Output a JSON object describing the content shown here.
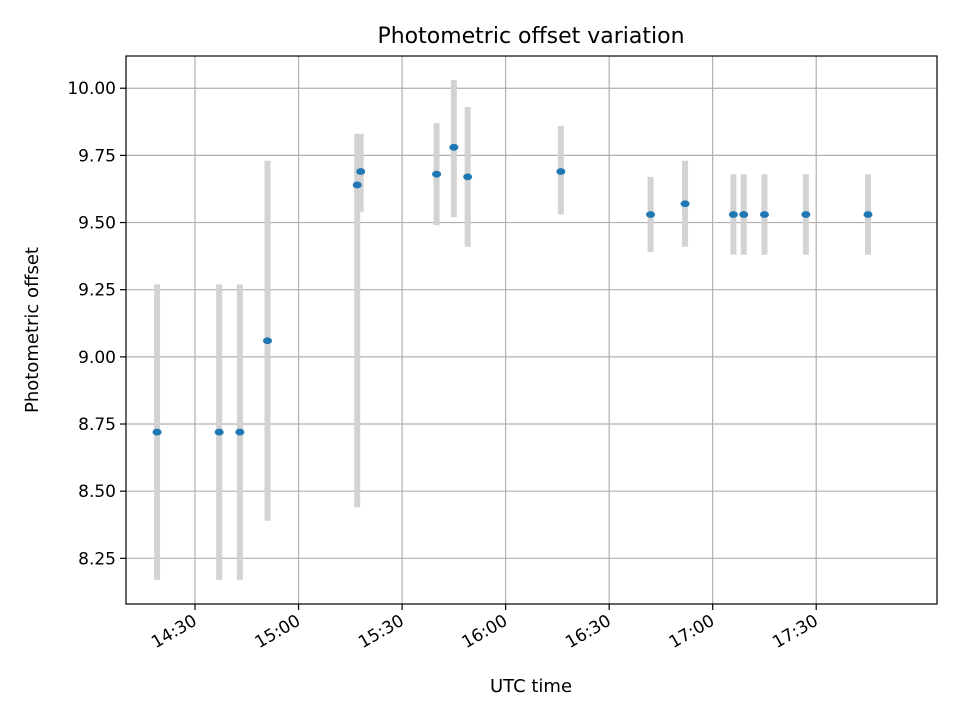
{
  "chart_data": {
    "type": "scatter",
    "title": "Photometric offset variation",
    "xlabel": "UTC time",
    "ylabel": "Photometric offset",
    "grid": true,
    "legend": "none",
    "x_range": [
      "14:10",
      "18:05"
    ],
    "ylim": [
      8.08,
      10.12
    ],
    "x_ticks": [
      "14:30",
      "15:00",
      "15:30",
      "16:00",
      "16:30",
      "17:00",
      "17:30"
    ],
    "y_ticks": [
      "8.25",
      "8.50",
      "8.75",
      "9.00",
      "9.25",
      "9.50",
      "9.75",
      "10.00"
    ],
    "colors": {
      "point": "#1f77b4",
      "errorbar": "#d3d3d3",
      "grid": "#b0b0b0"
    },
    "points": [
      {
        "x": "14:19",
        "y": 8.72,
        "ylow": 8.17,
        "yhigh": 9.27
      },
      {
        "x": "14:37",
        "y": 8.72,
        "ylow": 8.17,
        "yhigh": 9.27
      },
      {
        "x": "14:43",
        "y": 8.72,
        "ylow": 8.17,
        "yhigh": 9.27
      },
      {
        "x": "14:51",
        "y": 9.06,
        "ylow": 8.39,
        "yhigh": 9.73
      },
      {
        "x": "15:17",
        "y": 9.64,
        "ylow": 8.44,
        "yhigh": 9.83
      },
      {
        "x": "15:18",
        "y": 9.69,
        "ylow": 9.54,
        "yhigh": 9.83
      },
      {
        "x": "15:40",
        "y": 9.68,
        "ylow": 9.49,
        "yhigh": 9.87
      },
      {
        "x": "15:45",
        "y": 9.78,
        "ylow": 9.52,
        "yhigh": 10.03
      },
      {
        "x": "15:49",
        "y": 9.67,
        "ylow": 9.41,
        "yhigh": 9.93
      },
      {
        "x": "16:16",
        "y": 9.69,
        "ylow": 9.53,
        "yhigh": 9.86
      },
      {
        "x": "16:42",
        "y": 9.53,
        "ylow": 9.39,
        "yhigh": 9.67
      },
      {
        "x": "16:52",
        "y": 9.57,
        "ylow": 9.41,
        "yhigh": 9.73
      },
      {
        "x": "17:06",
        "y": 9.53,
        "ylow": 9.38,
        "yhigh": 9.68
      },
      {
        "x": "17:09",
        "y": 9.53,
        "ylow": 9.38,
        "yhigh": 9.68
      },
      {
        "x": "17:15",
        "y": 9.53,
        "ylow": 9.38,
        "yhigh": 9.68
      },
      {
        "x": "17:27",
        "y": 9.53,
        "ylow": 9.38,
        "yhigh": 9.68
      },
      {
        "x": "17:45",
        "y": 9.53,
        "ylow": 9.38,
        "yhigh": 9.68
      }
    ]
  }
}
